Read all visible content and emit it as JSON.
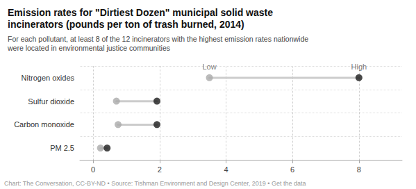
{
  "chart_data": {
    "type": "dumbbell",
    "title": "Emission rates for \"Dirtiest Dozen\" municipal solid waste\nincinerators (pounds per ton of trash burned, 2014)",
    "subtitle": "For each pollutant, at least 8 of the 12 incinerators with the highest emission rates nationwide\nwere located in environmental justice communities",
    "footer": "Chart: The Conversation, CC-BY-ND • Source: Tishman Environment and Design Center, 2019 • Get the data",
    "categories": [
      "Nitrogen oxides",
      "Sulfur dioxide",
      "Carbon monoxide",
      "PM 2.5"
    ],
    "series": [
      {
        "name": "Low",
        "color": "#aaaaaa",
        "values": [
          3.5,
          0.7,
          0.75,
          0.22
        ]
      },
      {
        "name": "High",
        "color": "#1a1a1a",
        "values": [
          8.0,
          1.92,
          1.92,
          0.42
        ]
      }
    ],
    "color": "#cccccc",
    "xlim": [
      -0.4,
      9.3
    ],
    "xticks": [
      0,
      2,
      4,
      6,
      8
    ],
    "grid": true,
    "annotations": [
      {
        "text": "Low",
        "x": 3.5,
        "category": "Nitrogen oxides"
      },
      {
        "text": "High",
        "x": 8.0,
        "category": "Nitrogen oxides"
      }
    ]
  }
}
